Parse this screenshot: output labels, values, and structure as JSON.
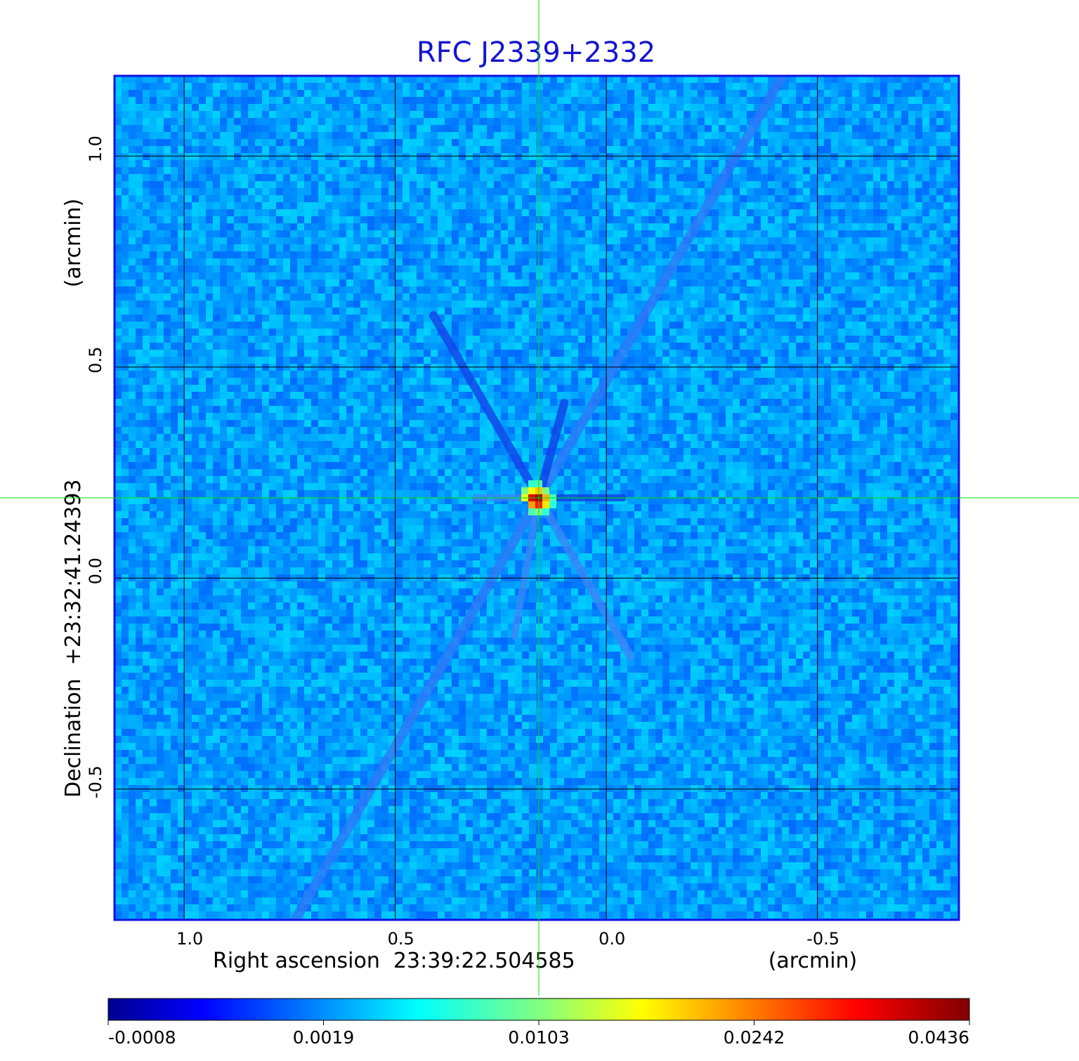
{
  "chart_data": {
    "type": "heatmap",
    "title": "RFC J2339+2332",
    "xlabel": "Right ascension  23:39:22.504585",
    "xunit": "(arcmin)",
    "ylabel": "Declination  +23:32:41.24393",
    "yunit": "(arcmin)",
    "x_ticks": [
      "1.0",
      "0.5",
      "0.0",
      "-0.5"
    ],
    "x_tick_values": [
      1.0,
      0.5,
      0.0,
      -0.5
    ],
    "y_ticks": [
      "1.0",
      "0.5",
      "0.0",
      "-0.5"
    ],
    "y_tick_values": [
      1.0,
      0.5,
      0.0,
      -0.5
    ],
    "xlim": [
      1.165,
      -0.835
    ],
    "ylim": [
      -0.81,
      1.19
    ],
    "grid": true,
    "crosshair": {
      "x": 0.16,
      "y": 0.19
    },
    "peak": {
      "x": 0.16,
      "y": 0.19,
      "value": 0.0436
    },
    "colorbar": {
      "ticks": [
        "-0.0008",
        "0.0019",
        "0.0103",
        "0.0242",
        "0.0436"
      ],
      "tick_values": [
        -0.0008,
        0.0019,
        0.0103,
        0.0242,
        0.0436
      ],
      "min": -0.0008,
      "max": 0.0436,
      "colormap": "jet",
      "placement": "bottom"
    },
    "colors": {
      "background_field": "#1a5af5",
      "title": "#1414d2",
      "crosshair": "#00e600",
      "grid": "#000000",
      "frame": "#1010e0"
    }
  }
}
